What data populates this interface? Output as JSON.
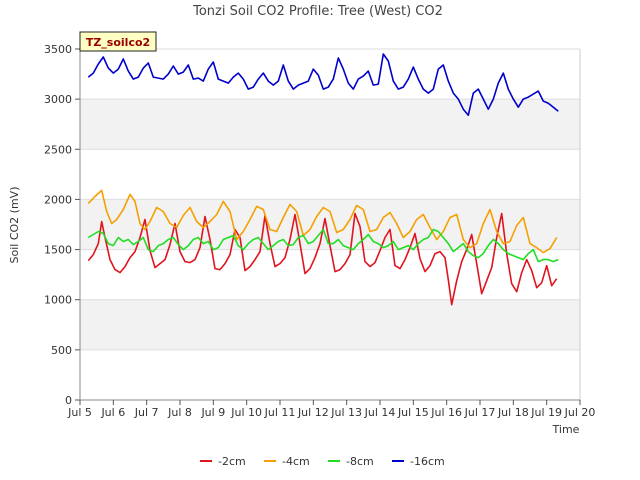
{
  "chart_data": {
    "type": "line",
    "title": "Tonzi Soil CO2 Profile: Tree (West) CO2",
    "xlabel": "Time",
    "ylabel": "Soil CO2 (mV)",
    "badge": "TZ_soilco2",
    "xlim": [
      5,
      20
    ],
    "ylim": [
      0,
      3500
    ],
    "x_ticks": [
      5,
      6,
      7,
      8,
      9,
      10,
      11,
      12,
      13,
      14,
      15,
      16,
      17,
      18,
      19,
      20
    ],
    "x_tick_labels": [
      "Jul 5",
      "Jul 6",
      "Jul 7",
      "Jul 8",
      "Jul 9",
      "Jul 10",
      "Jul 11",
      "Jul 12",
      "Jul 13",
      "Jul 14",
      "Jul 15",
      "Jul 16",
      "Jul 17",
      "Jul 18",
      "Jul 19",
      "Jul 20"
    ],
    "y_ticks": [
      0,
      500,
      1000,
      1500,
      2000,
      2500,
      3000,
      3500
    ],
    "y_tick_labels": [
      "0",
      "500",
      "1000",
      "1500",
      "2000",
      "2500",
      "3000",
      "3500"
    ],
    "grid_bands": "alternating light gray horizontal bands",
    "legend_position": "bottom",
    "series": [
      {
        "name": "-2cm",
        "color": "#e0141e",
        "x": [
          5.25,
          5.4,
          5.55,
          5.65,
          5.75,
          5.9,
          6.05,
          6.2,
          6.35,
          6.5,
          6.65,
          6.8,
          6.95,
          7.1,
          7.25,
          7.4,
          7.55,
          7.7,
          7.85,
          8.0,
          8.15,
          8.3,
          8.45,
          8.6,
          8.75,
          8.9,
          9.05,
          9.2,
          9.35,
          9.5,
          9.65,
          9.8,
          9.95,
          10.1,
          10.25,
          10.4,
          10.55,
          10.7,
          10.85,
          11.0,
          11.15,
          11.3,
          11.45,
          11.6,
          11.75,
          11.9,
          12.05,
          12.2,
          12.35,
          12.5,
          12.65,
          12.8,
          12.95,
          13.1,
          13.25,
          13.4,
          13.55,
          13.7,
          13.85,
          14.0,
          14.15,
          14.3,
          14.45,
          14.6,
          14.75,
          14.9,
          15.05,
          15.2,
          15.35,
          15.5,
          15.65,
          15.8,
          15.95,
          16.05,
          16.15,
          16.3,
          16.45,
          16.6,
          16.75,
          16.9,
          17.05,
          17.2,
          17.35,
          17.5,
          17.65,
          17.8,
          17.95,
          18.1,
          18.25,
          18.4,
          18.55,
          18.7,
          18.85,
          19.0,
          19.15,
          19.3
        ],
        "values": [
          1390,
          1450,
          1560,
          1780,
          1620,
          1400,
          1300,
          1270,
          1330,
          1420,
          1480,
          1620,
          1800,
          1490,
          1320,
          1360,
          1400,
          1550,
          1760,
          1480,
          1380,
          1370,
          1400,
          1520,
          1830,
          1600,
          1310,
          1300,
          1360,
          1450,
          1700,
          1620,
          1290,
          1330,
          1400,
          1480,
          1840,
          1560,
          1330,
          1360,
          1420,
          1600,
          1850,
          1560,
          1260,
          1310,
          1420,
          1560,
          1810,
          1540,
          1280,
          1300,
          1360,
          1450,
          1860,
          1730,
          1380,
          1330,
          1370,
          1490,
          1620,
          1700,
          1340,
          1310,
          1400,
          1520,
          1660,
          1410,
          1280,
          1340,
          1460,
          1480,
          1420,
          1200,
          950,
          1190,
          1380,
          1500,
          1650,
          1360,
          1060,
          1190,
          1320,
          1620,
          1860,
          1460,
          1160,
          1080,
          1270,
          1400,
          1290,
          1120,
          1170,
          1340,
          1140,
          1210
        ]
      },
      {
        "name": "-4cm",
        "color": "#f5a000",
        "x": [
          5.25,
          5.45,
          5.65,
          5.8,
          5.95,
          6.1,
          6.3,
          6.5,
          6.65,
          6.8,
          6.95,
          7.1,
          7.3,
          7.5,
          7.7,
          7.9,
          8.1,
          8.3,
          8.5,
          8.7,
          8.9,
          9.1,
          9.3,
          9.5,
          9.7,
          9.9,
          10.1,
          10.3,
          10.5,
          10.7,
          10.9,
          11.1,
          11.3,
          11.5,
          11.7,
          11.9,
          12.1,
          12.3,
          12.5,
          12.7,
          12.9,
          13.1,
          13.3,
          13.5,
          13.7,
          13.9,
          14.1,
          14.3,
          14.5,
          14.7,
          14.9,
          15.1,
          15.3,
          15.5,
          15.7,
          15.9,
          16.1,
          16.3,
          16.5,
          16.7,
          16.9,
          17.1,
          17.3,
          17.5,
          17.7,
          17.9,
          18.1,
          18.3,
          18.5,
          18.7,
          18.9,
          19.1,
          19.3
        ],
        "values": [
          1960,
          2030,
          2090,
          1880,
          1760,
          1800,
          1900,
          2050,
          1980,
          1760,
          1700,
          1780,
          1920,
          1880,
          1760,
          1720,
          1840,
          1920,
          1780,
          1720,
          1780,
          1850,
          1980,
          1880,
          1600,
          1680,
          1800,
          1930,
          1900,
          1700,
          1680,
          1820,
          1950,
          1880,
          1640,
          1700,
          1830,
          1920,
          1880,
          1670,
          1700,
          1800,
          1940,
          1900,
          1680,
          1700,
          1820,
          1870,
          1760,
          1620,
          1680,
          1800,
          1850,
          1720,
          1600,
          1680,
          1820,
          1850,
          1600,
          1520,
          1560,
          1760,
          1900,
          1680,
          1560,
          1580,
          1740,
          1820,
          1560,
          1520,
          1470,
          1510,
          1620
        ]
      },
      {
        "name": "-8cm",
        "color": "#22dd22",
        "x": [
          5.25,
          5.4,
          5.55,
          5.7,
          5.85,
          6.0,
          6.15,
          6.3,
          6.45,
          6.6,
          6.75,
          6.9,
          7.05,
          7.2,
          7.35,
          7.5,
          7.65,
          7.8,
          7.95,
          8.1,
          8.25,
          8.4,
          8.55,
          8.7,
          8.85,
          9.0,
          9.15,
          9.3,
          9.45,
          9.6,
          9.75,
          9.9,
          10.05,
          10.2,
          10.35,
          10.5,
          10.65,
          10.8,
          10.95,
          11.1,
          11.25,
          11.4,
          11.55,
          11.7,
          11.85,
          12.0,
          12.15,
          12.3,
          12.45,
          12.6,
          12.75,
          12.9,
          13.05,
          13.2,
          13.35,
          13.5,
          13.65,
          13.8,
          13.95,
          14.1,
          14.25,
          14.4,
          14.55,
          14.7,
          14.85,
          15.0,
          15.15,
          15.3,
          15.45,
          15.6,
          15.75,
          15.9,
          16.05,
          16.2,
          16.35,
          16.5,
          16.65,
          16.8,
          16.95,
          17.1,
          17.25,
          17.4,
          17.55,
          17.7,
          17.85,
          18.0,
          18.15,
          18.3,
          18.45,
          18.6,
          18.75,
          18.9,
          19.05,
          19.2,
          19.35
        ],
        "values": [
          1620,
          1650,
          1680,
          1660,
          1560,
          1540,
          1620,
          1580,
          1600,
          1550,
          1580,
          1620,
          1500,
          1480,
          1540,
          1560,
          1600,
          1620,
          1550,
          1500,
          1540,
          1600,
          1620,
          1560,
          1580,
          1500,
          1520,
          1600,
          1620,
          1640,
          1540,
          1500,
          1560,
          1600,
          1620,
          1560,
          1500,
          1540,
          1580,
          1600,
          1540,
          1550,
          1620,
          1640,
          1560,
          1580,
          1640,
          1700,
          1560,
          1560,
          1600,
          1540,
          1520,
          1500,
          1560,
          1600,
          1650,
          1580,
          1560,
          1520,
          1540,
          1580,
          1500,
          1520,
          1540,
          1500,
          1560,
          1600,
          1620,
          1700,
          1680,
          1620,
          1560,
          1480,
          1520,
          1560,
          1480,
          1440,
          1420,
          1460,
          1540,
          1600,
          1560,
          1500,
          1460,
          1440,
          1420,
          1400,
          1460,
          1500,
          1380,
          1400,
          1400,
          1380,
          1400
        ]
      },
      {
        "name": "-16cm",
        "color": "#0000cc",
        "x": [
          5.25,
          5.4,
          5.55,
          5.7,
          5.85,
          6.0,
          6.15,
          6.3,
          6.45,
          6.6,
          6.75,
          6.9,
          7.05,
          7.2,
          7.35,
          7.5,
          7.65,
          7.8,
          7.95,
          8.1,
          8.25,
          8.4,
          8.55,
          8.7,
          8.85,
          9.0,
          9.15,
          9.3,
          9.45,
          9.6,
          9.75,
          9.9,
          10.05,
          10.2,
          10.35,
          10.5,
          10.65,
          10.8,
          10.95,
          11.1,
          11.25,
          11.4,
          11.55,
          11.7,
          11.85,
          12.0,
          12.15,
          12.3,
          12.45,
          12.6,
          12.75,
          12.9,
          13.05,
          13.2,
          13.35,
          13.5,
          13.65,
          13.8,
          13.95,
          14.1,
          14.25,
          14.4,
          14.55,
          14.7,
          14.85,
          15.0,
          15.15,
          15.3,
          15.45,
          15.6,
          15.75,
          15.9,
          16.05,
          16.2,
          16.35,
          16.5,
          16.65,
          16.8,
          16.95,
          17.1,
          17.25,
          17.4,
          17.55,
          17.7,
          17.85,
          18.0,
          18.15,
          18.3,
          18.45,
          18.6,
          18.75,
          18.9,
          19.05,
          19.2,
          19.35
        ],
        "values": [
          3220,
          3260,
          3350,
          3420,
          3310,
          3260,
          3300,
          3400,
          3280,
          3200,
          3220,
          3310,
          3360,
          3220,
          3210,
          3200,
          3250,
          3330,
          3250,
          3270,
          3340,
          3200,
          3210,
          3180,
          3300,
          3370,
          3200,
          3180,
          3160,
          3220,
          3260,
          3200,
          3100,
          3120,
          3200,
          3260,
          3180,
          3140,
          3180,
          3340,
          3180,
          3100,
          3140,
          3160,
          3180,
          3300,
          3240,
          3100,
          3120,
          3200,
          3410,
          3300,
          3160,
          3100,
          3200,
          3230,
          3280,
          3140,
          3150,
          3450,
          3380,
          3180,
          3100,
          3120,
          3200,
          3320,
          3200,
          3100,
          3060,
          3100,
          3300,
          3340,
          3180,
          3060,
          3000,
          2900,
          2840,
          3060,
          3100,
          3000,
          2900,
          3000,
          3160,
          3260,
          3100,
          3000,
          2920,
          3000,
          3020,
          3050,
          3080,
          2980,
          2960,
          2920,
          2880
        ]
      }
    ]
  }
}
